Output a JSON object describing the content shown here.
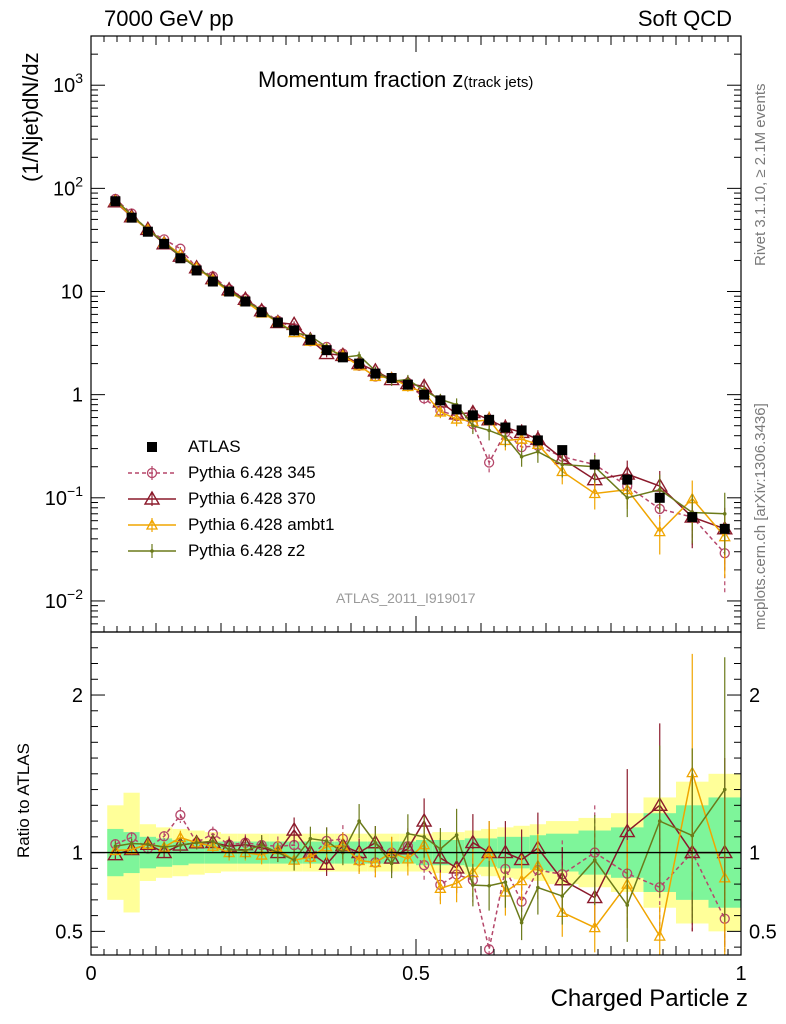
{
  "header": {
    "left": "7000 GeV pp",
    "right": "Soft QCD"
  },
  "title_main": "Momentum fraction z",
  "title_sub": "(track jets)",
  "ylabel": "(1/Njet)dN/dz",
  "ratio_ylabel": "Ratio to ATLAS",
  "xlabel": "Charged Particle z",
  "side_rivet": "Rivet 3.1.10, ≥ 2.1M events",
  "side_site": "mcplots.cern.ch [arXiv:1306.3436]",
  "analysis_id": "ATLAS_2011_I919017",
  "colors": {
    "data": "#000000",
    "p345": "#b5476a",
    "p370": "#8b1a2b",
    "ambt1": "#f0a500",
    "z2": "#6b7a1a",
    "band_inner": "#7ef59a",
    "band_outer": "#ffff99"
  },
  "legend": [
    {
      "label": "ATLAS",
      "key": "data"
    },
    {
      "label": "Pythia 6.428 345",
      "key": "p345"
    },
    {
      "label": "Pythia 6.428 370",
      "key": "p370"
    },
    {
      "label": "Pythia 6.428 ambt1",
      "key": "ambt1"
    },
    {
      "label": "Pythia 6.428 z2",
      "key": "z2"
    }
  ],
  "chart_data": [
    {
      "type": "scatter",
      "panel": "main",
      "yscale": "log",
      "xlim": [
        0,
        1
      ],
      "ylim": [
        0.005,
        3000
      ],
      "y_ticklabels": [
        "10^-2",
        "10^-1",
        "1",
        "10",
        "10^2",
        "10^3"
      ],
      "x": [
        0.0375,
        0.0625,
        0.0875,
        0.1125,
        0.1375,
        0.1625,
        0.1875,
        0.2125,
        0.2375,
        0.2625,
        0.2875,
        0.3125,
        0.3375,
        0.3625,
        0.3875,
        0.4125,
        0.4375,
        0.4625,
        0.4875,
        0.5125,
        0.5375,
        0.5625,
        0.5875,
        0.6125,
        0.6375,
        0.6625,
        0.6875,
        0.725,
        0.775,
        0.825,
        0.875,
        0.925,
        0.975
      ],
      "series": [
        {
          "name": "ATLAS",
          "key": "data",
          "values": [
            75,
            52,
            38,
            29,
            21,
            16,
            12.5,
            10,
            8,
            6.3,
            5,
            4.2,
            3.4,
            2.7,
            2.3,
            2.0,
            1.6,
            1.45,
            1.25,
            1.0,
            0.88,
            0.72,
            0.63,
            0.57,
            0.48,
            0.45,
            0.36,
            0.29,
            0.21,
            0.15,
            0.1,
            0.065,
            0.05
          ]
        },
        {
          "name": "Pythia 6.428 345",
          "key": "p345",
          "values": [
            79,
            57,
            39,
            32,
            26,
            17,
            14,
            10.5,
            8.5,
            6.6,
            5.2,
            4.4,
            3.3,
            2.9,
            2.5,
            1.9,
            1.5,
            1.45,
            1.3,
            0.92,
            0.7,
            0.62,
            0.52,
            0.22,
            0.43,
            0.31,
            0.32,
            0.25,
            0.21,
            0.13,
            0.078,
            0.065,
            0.029
          ],
          "errs": [
            0.03,
            0.03,
            0.03,
            0.03,
            0.04,
            0.04,
            0.04,
            0.05,
            0.05,
            0.06,
            0.06,
            0.07,
            0.07,
            0.08,
            0.08,
            0.09,
            0.1,
            0.1,
            0.11,
            0.12,
            0.13,
            0.15,
            0.17,
            0.2,
            0.2,
            0.2,
            0.22,
            0.25,
            0.3,
            0.35,
            0.4,
            0.5,
            0.6
          ]
        },
        {
          "name": "Pythia 6.428 370",
          "key": "p370",
          "values": [
            74,
            53,
            40,
            29,
            22,
            17,
            13.3,
            10.4,
            8.4,
            6.5,
            5.0,
            4.8,
            3.4,
            2.5,
            2.4,
            2.0,
            1.7,
            1.4,
            1.28,
            1.2,
            0.85,
            0.65,
            0.67,
            0.57,
            0.48,
            0.43,
            0.37,
            0.24,
            0.15,
            0.17,
            0.13,
            0.065,
            0.05
          ],
          "errs": [
            0.03,
            0.03,
            0.03,
            0.03,
            0.04,
            0.04,
            0.04,
            0.05,
            0.05,
            0.06,
            0.06,
            0.07,
            0.07,
            0.08,
            0.08,
            0.09,
            0.1,
            0.1,
            0.11,
            0.12,
            0.13,
            0.15,
            0.17,
            0.2,
            0.2,
            0.2,
            0.22,
            0.25,
            0.3,
            0.35,
            0.4,
            0.5,
            0.6
          ]
        },
        {
          "name": "Pythia 6.428 ambt1",
          "key": "ambt1",
          "values": [
            76,
            53,
            40,
            30,
            23,
            17,
            13,
            10,
            8,
            6.2,
            5.1,
            4,
            3.3,
            2.8,
            2.4,
            1.9,
            1.5,
            1.45,
            1.2,
            1.05,
            0.68,
            0.58,
            0.55,
            0.57,
            0.36,
            0.37,
            0.33,
            0.18,
            0.11,
            0.12,
            0.047,
            0.098,
            0.042
          ],
          "errs": [
            0.03,
            0.03,
            0.03,
            0.03,
            0.04,
            0.04,
            0.04,
            0.05,
            0.05,
            0.06,
            0.06,
            0.07,
            0.07,
            0.08,
            0.08,
            0.09,
            0.1,
            0.1,
            0.11,
            0.12,
            0.13,
            0.15,
            0.17,
            0.2,
            0.2,
            0.2,
            0.22,
            0.25,
            0.3,
            0.35,
            0.4,
            0.5,
            0.6
          ]
        },
        {
          "name": "Pythia 6.428 z2",
          "key": "z2",
          "values": [
            78,
            55,
            40,
            30,
            22,
            17,
            13.4,
            10.2,
            8.1,
            6.6,
            5.0,
            4.0,
            3.7,
            2.9,
            2.3,
            2.4,
            1.7,
            1.35,
            1.4,
            1.1,
            0.9,
            0.8,
            0.5,
            0.45,
            0.39,
            0.25,
            0.28,
            0.21,
            0.2,
            0.1,
            0.12,
            0.072,
            0.07
          ],
          "errs": [
            0.03,
            0.03,
            0.03,
            0.03,
            0.04,
            0.04,
            0.04,
            0.05,
            0.05,
            0.06,
            0.06,
            0.07,
            0.07,
            0.08,
            0.08,
            0.09,
            0.1,
            0.1,
            0.11,
            0.12,
            0.13,
            0.15,
            0.17,
            0.2,
            0.2,
            0.2,
            0.22,
            0.25,
            0.3,
            0.35,
            0.4,
            0.5,
            0.6
          ]
        }
      ]
    },
    {
      "type": "line",
      "panel": "ratio",
      "xlim": [
        0,
        1
      ],
      "ylim": [
        0.35,
        2.4
      ],
      "x_ticklabels": [
        "0",
        "0.5",
        "1"
      ],
      "y_ticklabels": [
        "0.5",
        "1",
        "2"
      ],
      "bins": [
        0.025,
        0.05,
        0.075,
        0.1,
        0.125,
        0.15,
        0.175,
        0.2,
        0.225,
        0.25,
        0.275,
        0.3,
        0.325,
        0.35,
        0.375,
        0.4,
        0.425,
        0.45,
        0.475,
        0.5,
        0.525,
        0.55,
        0.575,
        0.6,
        0.625,
        0.65,
        0.675,
        0.7,
        0.75,
        0.8,
        0.85,
        0.9,
        0.95,
        1.0
      ],
      "band_inner": [
        0.15,
        0.13,
        0.1,
        0.09,
        0.08,
        0.07,
        0.07,
        0.07,
        0.07,
        0.07,
        0.07,
        0.07,
        0.07,
        0.07,
        0.07,
        0.07,
        0.07,
        0.07,
        0.07,
        0.08,
        0.08,
        0.08,
        0.09,
        0.09,
        0.1,
        0.1,
        0.11,
        0.12,
        0.14,
        0.16,
        0.25,
        0.3,
        0.35
      ],
      "band_outer": [
        0.3,
        0.38,
        0.18,
        0.16,
        0.15,
        0.14,
        0.13,
        0.12,
        0.12,
        0.12,
        0.12,
        0.12,
        0.12,
        0.12,
        0.12,
        0.12,
        0.12,
        0.12,
        0.12,
        0.12,
        0.13,
        0.13,
        0.14,
        0.15,
        0.16,
        0.17,
        0.18,
        0.2,
        0.22,
        0.25,
        0.35,
        0.45,
        0.5
      ]
    }
  ]
}
